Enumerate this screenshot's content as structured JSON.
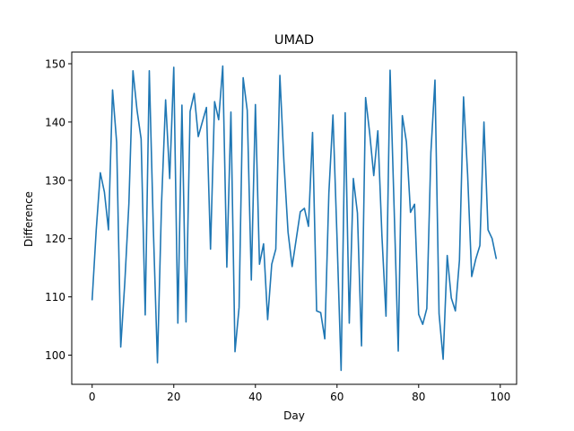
{
  "chart_data": {
    "type": "line",
    "title": "UMAD",
    "xlabel": "Day",
    "ylabel": "Difference",
    "xlim": [
      -5,
      104
    ],
    "ylim": [
      95,
      152
    ],
    "x_ticks": [
      0,
      20,
      40,
      60,
      80,
      100
    ],
    "y_ticks": [
      100,
      110,
      120,
      130,
      140,
      150
    ],
    "x_tick_labels": [
      "0",
      "20",
      "40",
      "60",
      "80",
      "100"
    ],
    "y_tick_labels": [
      "100",
      "110",
      "120",
      "130",
      "140",
      "150"
    ],
    "grid": false,
    "legend": "none",
    "series_color": "#1f77b4",
    "series": [
      {
        "x": [
          0,
          1,
          2,
          3,
          4,
          5,
          6,
          7,
          8,
          9,
          10,
          11,
          12,
          13,
          14,
          15,
          16,
          17,
          18,
          19,
          20,
          21,
          22,
          23,
          24,
          25,
          26,
          27,
          28,
          29,
          30,
          31,
          32,
          33,
          34,
          35,
          36,
          37,
          38,
          39,
          40,
          41,
          42,
          43,
          44,
          45,
          46,
          47,
          48,
          49,
          50,
          51,
          52,
          53,
          54,
          55,
          56,
          57,
          58,
          59,
          60,
          61,
          62,
          63,
          64,
          65,
          66,
          67,
          68,
          69,
          70,
          71,
          72,
          73,
          74,
          75,
          76,
          77,
          78,
          79,
          80,
          81,
          82,
          83,
          84,
          85,
          86,
          87,
          88,
          89,
          90,
          91,
          92,
          93,
          94,
          95,
          96,
          97,
          98,
          99
        ],
        "values": [
          109.5,
          121.5,
          131.3,
          128.0,
          121.5,
          145.5,
          136.5,
          101.4,
          112.5,
          126.0,
          148.8,
          142.0,
          137.1,
          106.9,
          148.8,
          121.5,
          98.7,
          126.0,
          143.8,
          130.3,
          149.4,
          105.5,
          142.9,
          105.7,
          141.8,
          144.9,
          137.5,
          140.0,
          142.5,
          118.2,
          143.5,
          140.4,
          149.6,
          115.1,
          141.7,
          100.6,
          108.2,
          147.6,
          142.0,
          112.9,
          143.0,
          115.6,
          119.1,
          106.1,
          115.6,
          118.2,
          148.0,
          133.0,
          121.1,
          115.2,
          119.9,
          124.6,
          125.2,
          122.1,
          138.2,
          107.6,
          107.3,
          102.8,
          127.8,
          141.2,
          120.1,
          97.4,
          141.6,
          105.5,
          130.3,
          124.4,
          101.6,
          144.2,
          138.1,
          130.8,
          138.5,
          120.5,
          106.7,
          148.9,
          125.0,
          100.7,
          141.1,
          136.6,
          124.5,
          125.9,
          107.0,
          105.3,
          108.0,
          134.8,
          147.2,
          107.1,
          99.3,
          117.1,
          109.8,
          107.6,
          116.3,
          144.3,
          131.0,
          113.5,
          116.5,
          118.8,
          140.0,
          121.5,
          120.0,
          116.6
        ]
      }
    ]
  }
}
